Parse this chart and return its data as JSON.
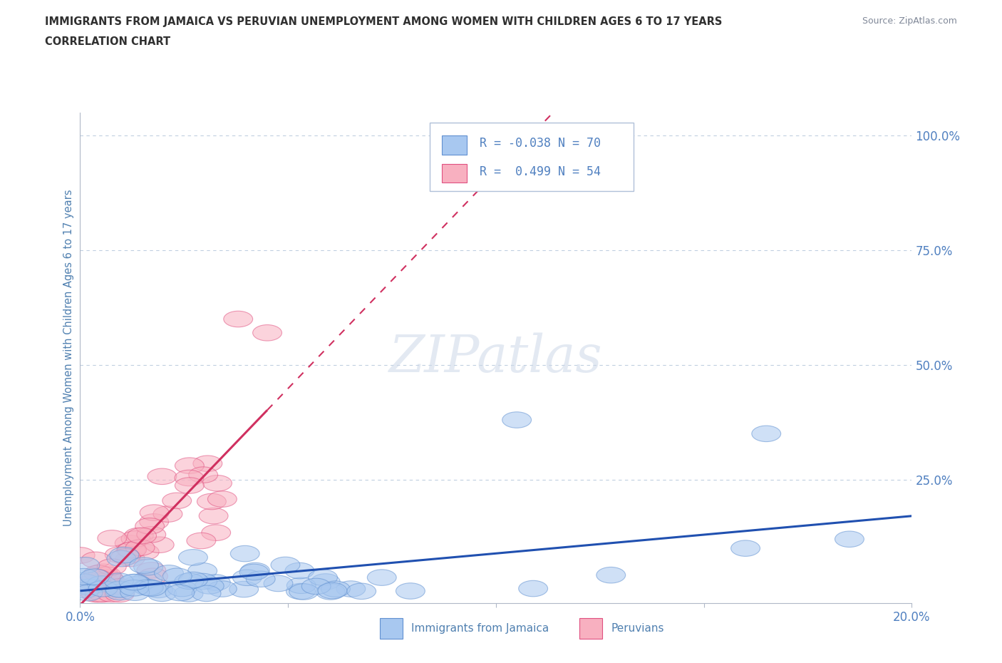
{
  "title_line1": "IMMIGRANTS FROM JAMAICA VS PERUVIAN UNEMPLOYMENT AMONG WOMEN WITH CHILDREN AGES 6 TO 17 YEARS",
  "title_line2": "CORRELATION CHART",
  "source_text": "Source: ZipAtlas.com",
  "ylabel": "Unemployment Among Women with Children Ages 6 to 17 years",
  "xlim": [
    0.0,
    0.2
  ],
  "ylim": [
    -0.02,
    1.05
  ],
  "xticks": [
    0.0,
    0.05,
    0.1,
    0.15,
    0.2
  ],
  "xticklabels": [
    "0.0%",
    "",
    "",
    "",
    "20.0%"
  ],
  "yticks": [
    0.0,
    0.25,
    0.5,
    0.75,
    1.0
  ],
  "yticklabels_right": [
    "",
    "25.0%",
    "50.0%",
    "75.0%",
    "100.0%"
  ],
  "series1_color": "#a8c8f0",
  "series1_edge": "#6090d0",
  "series2_color": "#f8b0c0",
  "series2_edge": "#e05080",
  "trendline1_color": "#2050b0",
  "trendline2_color": "#d03060",
  "watermark_text": "ZIPatlas",
  "background_color": "#ffffff",
  "grid_color": "#c0cfe0",
  "title_color": "#303030",
  "axis_label_color": "#5080b0",
  "tick_color": "#5080c0",
  "r1": -0.038,
  "n1": 70,
  "r2": 0.499,
  "n2": 54
}
